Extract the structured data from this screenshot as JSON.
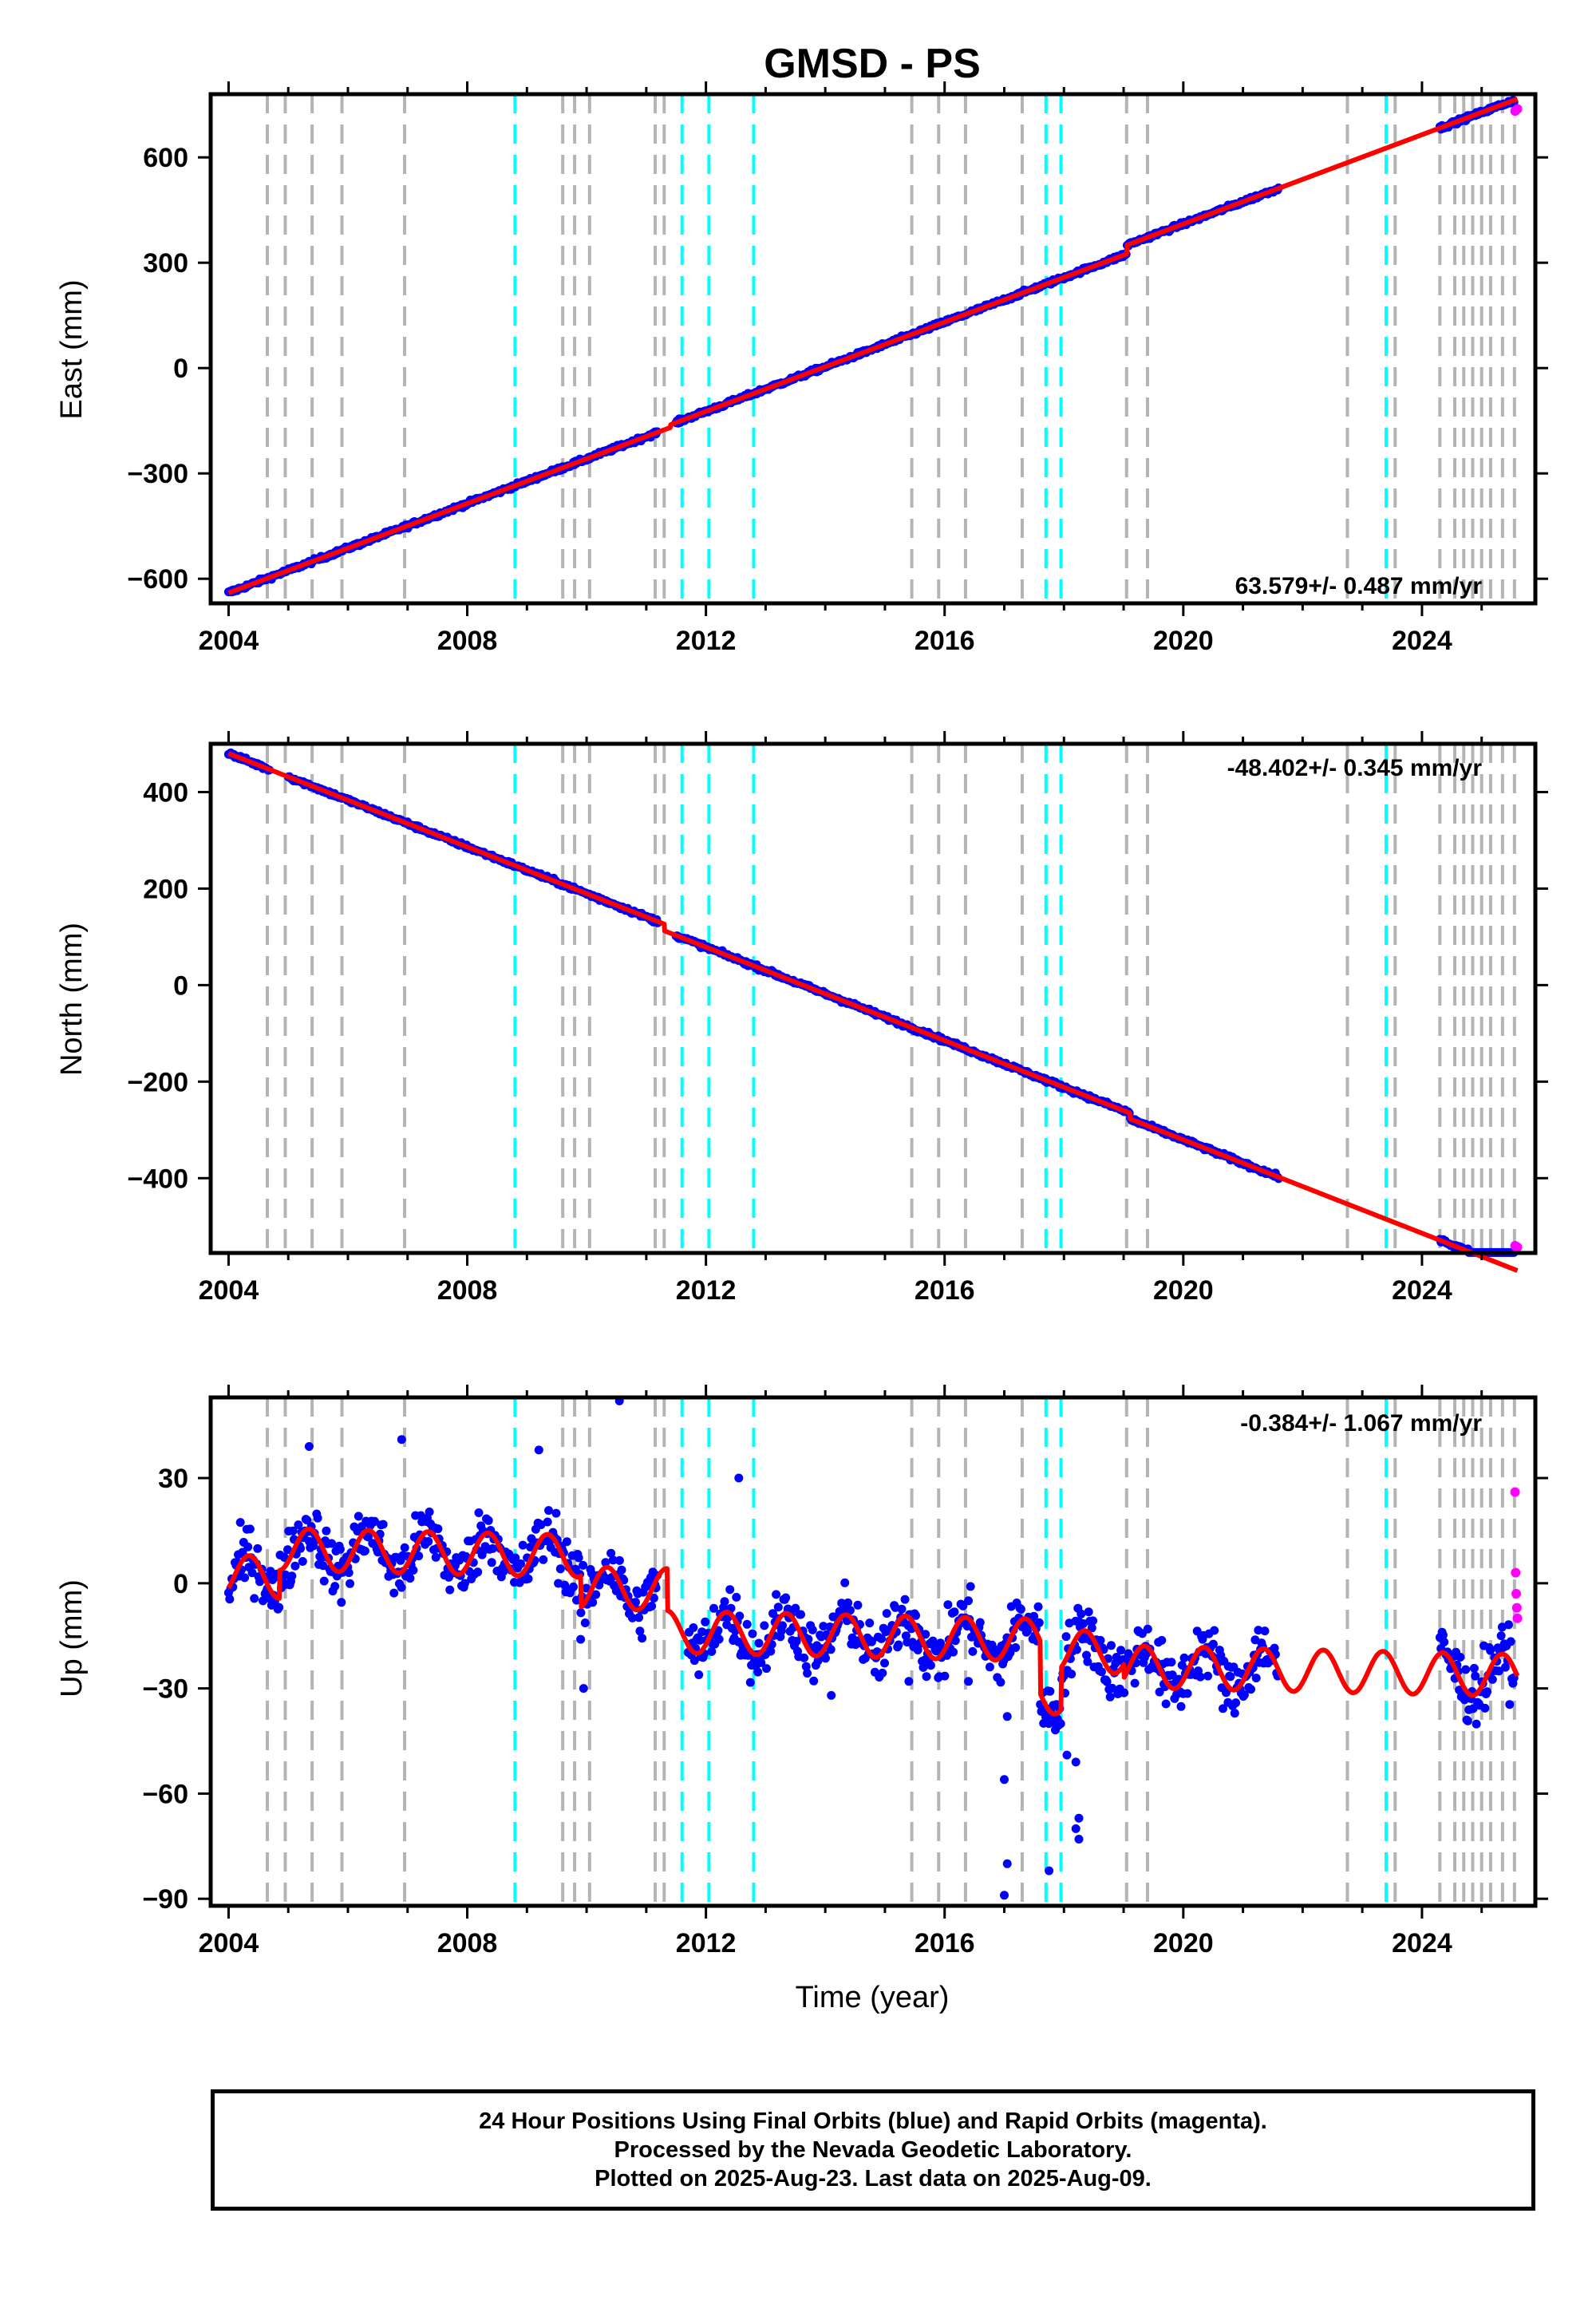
{
  "chart_data": [
    {
      "type": "scatter",
      "id": "east",
      "title": "GMSD - PS",
      "ylabel": "East (mm)",
      "xlabel": "",
      "xlim": [
        2003.7,
        2025.9
      ],
      "ylim": [
        -670,
        780
      ],
      "xticks": [
        2004,
        2008,
        2012,
        2016,
        2020,
        2024
      ],
      "yticks": [
        -600,
        -300,
        0,
        300,
        600
      ],
      "yticklabels": [
        "−600",
        "−300",
        "0",
        "300",
        "600"
      ],
      "rate_label": "63.579+/- 0.487 mm/yr",
      "model": {
        "start": 2004.0,
        "start_value": -640,
        "rate": 63.579,
        "steps": [
          [
            2011.4,
            8
          ],
          [
            2019.05,
            25
          ]
        ],
        "annual_amp": 0
      },
      "final_segments": [
        [
          2004.0,
          2011.2
        ],
        [
          2011.5,
          2021.6
        ],
        [
          2024.3,
          2025.55
        ]
      ],
      "scatter_noise": 4,
      "rapid_points": [
        [
          2025.56,
          732
        ],
        [
          2025.58,
          735
        ],
        [
          2025.6,
          738
        ]
      ]
    },
    {
      "type": "scatter",
      "id": "north",
      "title": "",
      "ylabel": "North (mm)",
      "xlabel": "",
      "xlim": [
        2003.7,
        2025.9
      ],
      "ylim": [
        -555,
        500
      ],
      "xticks": [
        2004,
        2008,
        2012,
        2016,
        2020,
        2024
      ],
      "yticks": [
        -400,
        -200,
        0,
        200,
        400
      ],
      "yticklabels": [
        "−400",
        "−200",
        "0",
        "200",
        "400"
      ],
      "rate_label": "-48.402+/- 0.345 mm/yr",
      "model": {
        "start": 2004.0,
        "start_value": 480,
        "rate": -48.402,
        "steps": [
          [
            2011.3,
            -14
          ],
          [
            2019.1,
            -12
          ]
        ],
        "annual_amp": 0
      },
      "final_segments": [
        [
          2004.0,
          2004.7
        ],
        [
          2005.0,
          2011.2
        ],
        [
          2011.5,
          2021.6
        ],
        [
          2024.3,
          2025.55
        ]
      ],
      "scatter_noise": 3,
      "rapid_points": [
        [
          2025.56,
          -540
        ],
        [
          2025.58,
          -542
        ],
        [
          2025.6,
          -543
        ]
      ]
    },
    {
      "type": "scatter",
      "id": "up",
      "title": "",
      "ylabel": "Up (mm)",
      "xlabel": "Time (year)",
      "xlim": [
        2003.7,
        2025.9
      ],
      "ylim": [
        -92,
        53
      ],
      "xticks": [
        2004,
        2008,
        2012,
        2016,
        2020,
        2024
      ],
      "yticks": [
        -90,
        -60,
        -30,
        0,
        30
      ],
      "yticklabels": [
        "−90",
        "−60",
        "−30",
        "0",
        "30"
      ],
      "rate_label": "-0.384+/- 1.067 mm/yr",
      "model": {
        "start": 2004.0,
        "start_value": 2,
        "rate": -0.384,
        "steps": [
          [
            2004.85,
            8
          ],
          [
            2009.9,
            -9
          ],
          [
            2011.35,
            -12
          ],
          [
            2017.6,
            -15
          ],
          [
            2017.95,
            12
          ],
          [
            2019.0,
            -4
          ]
        ],
        "annual_amp": 6
      },
      "final_segments": [
        [
          2004.0,
          2011.2
        ],
        [
          2011.7,
          2021.6
        ],
        [
          2024.3,
          2025.55
        ]
      ],
      "scatter_noise": 6,
      "outliers": [
        [
          2009.95,
          -30
        ],
        [
          2009.9,
          -16
        ],
        [
          2017.05,
          -38
        ],
        [
          2017.0,
          -56
        ],
        [
          2017.05,
          -80
        ],
        [
          2017.0,
          -89
        ],
        [
          2017.75,
          -82
        ],
        [
          2018.05,
          -49
        ],
        [
          2018.2,
          -51
        ],
        [
          2018.25,
          -67
        ],
        [
          2018.2,
          -70
        ],
        [
          2018.25,
          -73
        ],
        [
          2012.55,
          30
        ],
        [
          2010.55,
          52
        ],
        [
          2006.9,
          41
        ],
        [
          2014.1,
          -32
        ],
        [
          2016.4,
          -28
        ],
        [
          2015.4,
          -28
        ],
        [
          2020.75,
          -34
        ],
        [
          2005.35,
          39
        ],
        [
          2009.2,
          38
        ]
      ],
      "rapid_points": [
        [
          2025.56,
          26
        ],
        [
          2025.57,
          3
        ],
        [
          2025.58,
          -3
        ],
        [
          2025.59,
          -7
        ],
        [
          2025.6,
          -10
        ]
      ]
    }
  ],
  "event_lines": {
    "gray": [
      2004.65,
      2004.95,
      2005.4,
      2005.9,
      2006.95,
      2009.6,
      2009.8,
      2010.05,
      2011.15,
      2011.3,
      2015.45,
      2015.9,
      2016.35,
      2017.3,
      2019.05,
      2019.4,
      2022.75,
      2023.55,
      2024.3,
      2024.55,
      2024.7,
      2024.85,
      2025.0,
      2025.15,
      2025.35,
      2025.55
    ],
    "cyan": [
      2008.8,
      2011.6,
      2012.05,
      2012.8,
      2017.7,
      2017.95,
      2023.4
    ]
  },
  "colors": {
    "final": "#0000ff",
    "rapid": "#ff00ff",
    "model": "#ff0000",
    "gray_event": "#b4b4b4",
    "cyan_event": "#00ffff"
  },
  "caption": {
    "line1": "24 Hour Positions Using Final Orbits (blue) and Rapid Orbits (magenta).",
    "line2": "Processed by the Nevada Geodetic Laboratory.",
    "line3": "Plotted on 2025-Aug-23. Last data on 2025-Aug-09."
  }
}
